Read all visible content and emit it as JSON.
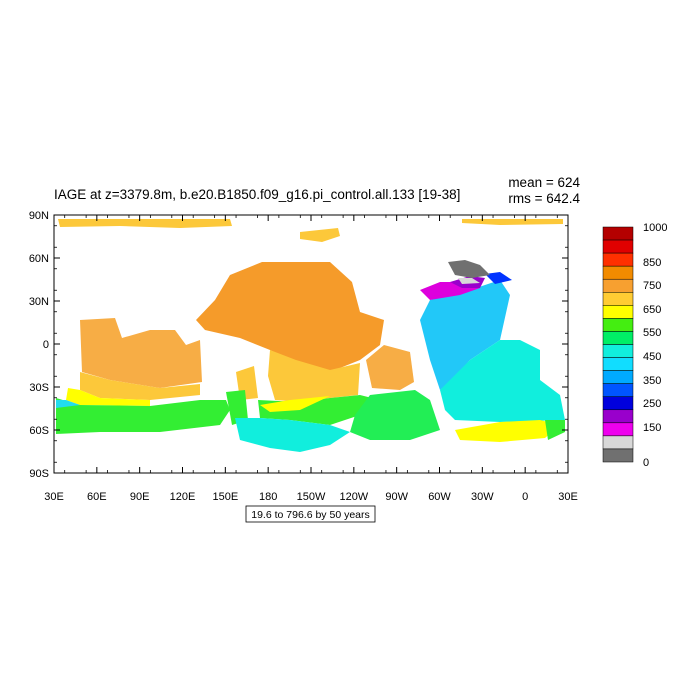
{
  "title": "IAGE at z=3379.8m, b.e20.B1850.f09_g16.pi_control.all.133 [19-38]",
  "stats": {
    "mean": "mean = 624",
    "rms": "rms = 642.4"
  },
  "range_label": "19.6 to 796.6 by 50 years",
  "lon_ticks": [
    "30E",
    "60E",
    "90E",
    "120E",
    "150E",
    "180",
    "150W",
    "120W",
    "90W",
    "60W",
    "30W",
    "0",
    "30E"
  ],
  "lat_ticks": [
    "90N",
    "60N",
    "30N",
    "0",
    "30S",
    "60S",
    "90S"
  ],
  "colorbar": {
    "labels": [
      "1000",
      "850",
      "750",
      "650",
      "550",
      "450",
      "350",
      "250",
      "150",
      "0"
    ],
    "colors": [
      "#b40000",
      "#e00000",
      "#ff3000",
      "#f28b00",
      "#f7a030",
      "#ffcc33",
      "#ffff00",
      "#44ee11",
      "#00ee66",
      "#11eedd",
      "#11ddff",
      "#00aaff",
      "#0055ff",
      "#0000dd",
      "#9900cc",
      "#ee00ee",
      "#d8d8d8",
      "#707070"
    ]
  },
  "colors": {
    "orange": "#f59b2a",
    "light_orange": "#f7ad45",
    "yellow_orange": "#fcc83a",
    "yellow": "#ffff00",
    "green": "#33ee33",
    "bright_green": "#22ee55",
    "cyan": "#11eedd",
    "light_blue": "#22ddee",
    "sky": "#22c8f8",
    "blue": "#0033ff",
    "magenta": "#dd00dd",
    "purple": "#9900cc",
    "gray": "#707070",
    "light_gray": "#d8d8d8"
  }
}
